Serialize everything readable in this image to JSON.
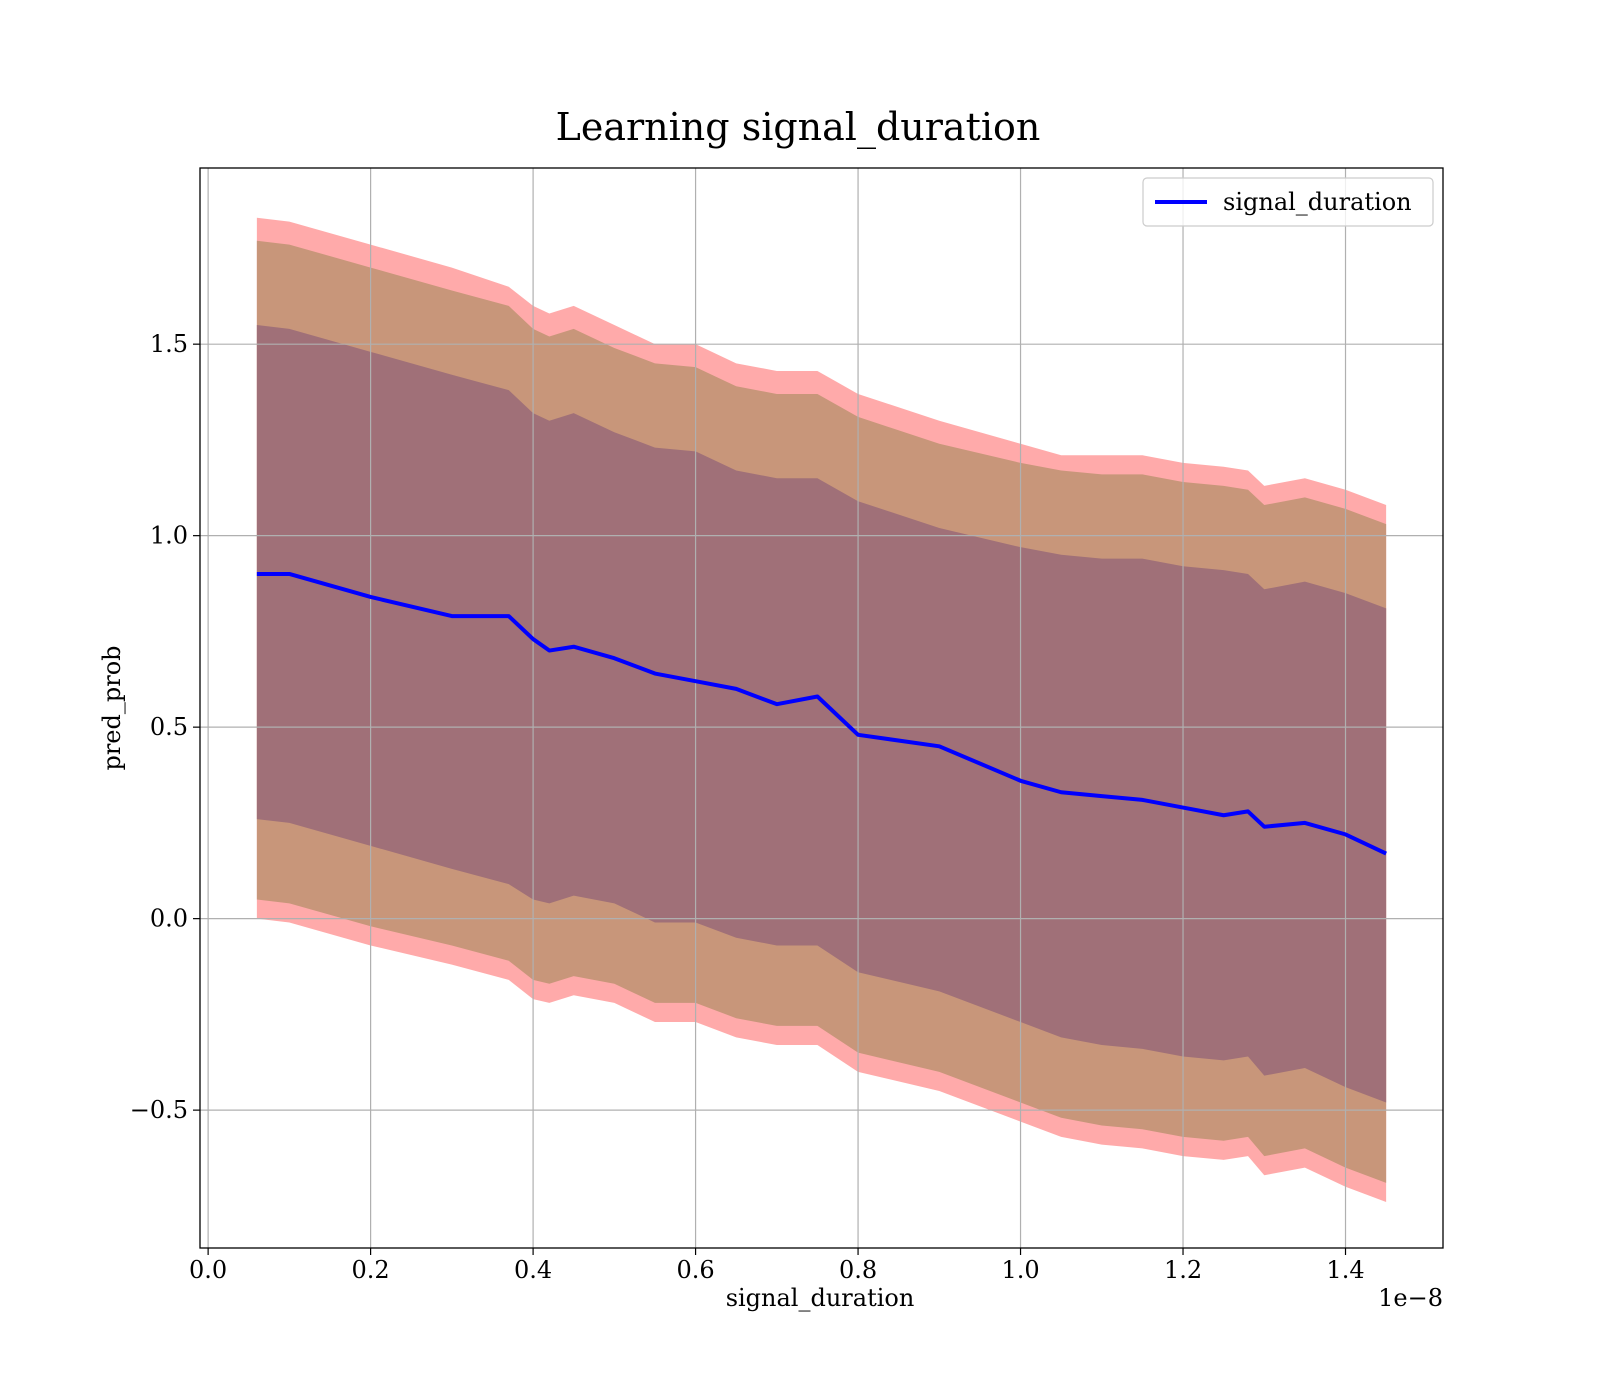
{
  "chart_data": {
    "type": "area",
    "title": "Learning signal_duration",
    "xlabel": "signal_duration",
    "ylabel": "pred_prob",
    "x_offset_label": "1e−8",
    "x_ticks": [
      "0.0",
      "0.2",
      "0.4",
      "0.6",
      "0.8",
      "1.0",
      "1.2",
      "1.4"
    ],
    "x_tick_values": [
      0.0,
      0.2,
      0.4,
      0.6,
      0.8,
      1.0,
      1.2,
      1.4
    ],
    "y_ticks": [
      "−0.5",
      "0.0",
      "0.5",
      "1.0",
      "1.5"
    ],
    "y_tick_values": [
      -0.5,
      0.0,
      0.5,
      1.0,
      1.5
    ],
    "xlim": [
      -0.01,
      1.52
    ],
    "ylim": [
      -0.86,
      1.96
    ],
    "grid": true,
    "legend": {
      "position": "upper right",
      "entries": [
        "signal_duration"
      ]
    },
    "colors": {
      "line": "#0000ff",
      "band_outer": "#ffaaaa",
      "band_middle": "#c8967a",
      "band_inner": "#a07078",
      "grid": "#b0b0b0"
    },
    "series": [
      {
        "name": "signal_duration",
        "x": [
          0.06,
          0.1,
          0.2,
          0.3,
          0.37,
          0.4,
          0.42,
          0.45,
          0.5,
          0.55,
          0.6,
          0.65,
          0.7,
          0.75,
          0.8,
          0.9,
          1.0,
          1.05,
          1.1,
          1.15,
          1.2,
          1.25,
          1.28,
          1.3,
          1.35,
          1.4,
          1.45
        ],
        "y": [
          0.9,
          0.9,
          0.84,
          0.79,
          0.79,
          0.73,
          0.7,
          0.71,
          0.68,
          0.64,
          0.62,
          0.6,
          0.56,
          0.58,
          0.48,
          0.45,
          0.36,
          0.33,
          0.32,
          0.31,
          0.29,
          0.27,
          0.28,
          0.24,
          0.25,
          0.22,
          0.17
        ]
      }
    ],
    "bands": [
      {
        "label": "outer",
        "upper": [
          1.83,
          1.82,
          1.76,
          1.7,
          1.65,
          1.6,
          1.58,
          1.6,
          1.55,
          1.5,
          1.5,
          1.45,
          1.43,
          1.43,
          1.37,
          1.3,
          1.24,
          1.21,
          1.21,
          1.21,
          1.19,
          1.18,
          1.17,
          1.13,
          1.15,
          1.12,
          1.08
        ],
        "lower": [
          0.0,
          -0.01,
          -0.07,
          -0.12,
          -0.16,
          -0.21,
          -0.22,
          -0.2,
          -0.22,
          -0.27,
          -0.27,
          -0.31,
          -0.33,
          -0.33,
          -0.4,
          -0.45,
          -0.53,
          -0.57,
          -0.59,
          -0.6,
          -0.62,
          -0.63,
          -0.62,
          -0.67,
          -0.65,
          -0.7,
          -0.74
        ]
      },
      {
        "label": "middle",
        "upper": [
          1.77,
          1.76,
          1.7,
          1.64,
          1.6,
          1.54,
          1.52,
          1.54,
          1.49,
          1.45,
          1.44,
          1.39,
          1.37,
          1.37,
          1.31,
          1.24,
          1.19,
          1.17,
          1.16,
          1.16,
          1.14,
          1.13,
          1.12,
          1.08,
          1.1,
          1.07,
          1.03
        ],
        "lower": [
          0.05,
          0.04,
          -0.02,
          -0.07,
          -0.11,
          -0.16,
          -0.17,
          -0.15,
          -0.17,
          -0.22,
          -0.22,
          -0.26,
          -0.28,
          -0.28,
          -0.35,
          -0.4,
          -0.48,
          -0.52,
          -0.54,
          -0.55,
          -0.57,
          -0.58,
          -0.57,
          -0.62,
          -0.6,
          -0.65,
          -0.69
        ]
      },
      {
        "label": "inner",
        "upper": [
          1.55,
          1.54,
          1.48,
          1.42,
          1.38,
          1.32,
          1.3,
          1.32,
          1.27,
          1.23,
          1.22,
          1.17,
          1.15,
          1.15,
          1.09,
          1.02,
          0.97,
          0.95,
          0.94,
          0.94,
          0.92,
          0.91,
          0.9,
          0.86,
          0.88,
          0.85,
          0.81
        ],
        "lower": [
          0.26,
          0.25,
          0.19,
          0.13,
          0.09,
          0.05,
          0.04,
          0.06,
          0.04,
          -0.01,
          -0.01,
          -0.05,
          -0.07,
          -0.07,
          -0.14,
          -0.19,
          -0.27,
          -0.31,
          -0.33,
          -0.34,
          -0.36,
          -0.37,
          -0.36,
          -0.41,
          -0.39,
          -0.44,
          -0.48
        ]
      }
    ]
  }
}
